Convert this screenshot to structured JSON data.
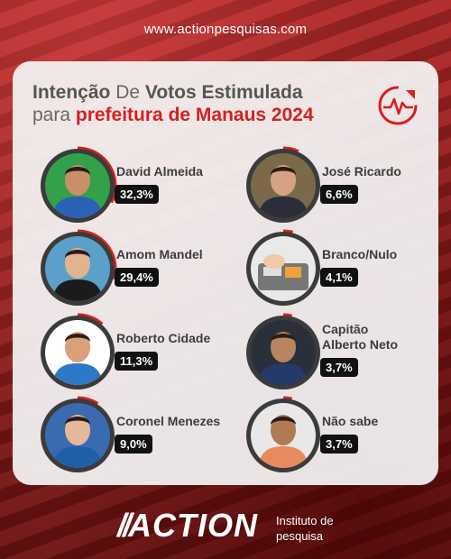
{
  "site": "www.actionpesquisas.com",
  "title": {
    "line1_a": "Intenção",
    "line1_b": " De ",
    "line1_c": "Votos Estimulada",
    "line2_a": "para ",
    "line2_b": "prefeitura de Manaus 2024"
  },
  "brand": {
    "name": "ACTION",
    "sub1": "Instituto de",
    "sub2": "pesquisa"
  },
  "colors": {
    "accent": "#d61f1f",
    "badge": "#111111",
    "ring": "#3b3b3b"
  },
  "chart_data": {
    "type": "table",
    "title": "Intenção De Votos Estimulada para prefeitura de Manaus 2024",
    "categories": [
      "David Almeida",
      "Amom Mandel",
      "Roberto Cidade",
      "Coronel Menezes",
      "José Ricardo",
      "Branco/Nulo",
      "Capitão Alberto Neto",
      "Não sabe"
    ],
    "values": [
      32.3,
      29.4,
      11.3,
      9.0,
      6.6,
      4.1,
      3.7,
      3.7
    ],
    "labels": [
      "32,3%",
      "29,4%",
      "11,3%",
      "9,0%",
      "6,6%",
      "4,1%",
      "3,7%",
      "3,7%"
    ],
    "name_lines": [
      [
        "David Almeida"
      ],
      [
        "Amom Mandel"
      ],
      [
        "Roberto Cidade"
      ],
      [
        "Coronel Menezes"
      ],
      [
        "José Ricardo"
      ],
      [
        "Branco/Nulo"
      ],
      [
        "Capitão",
        "Alberto Neto"
      ],
      [
        "Não sabe"
      ]
    ],
    "icons": [
      "person-photo",
      "person-photo",
      "person-photo",
      "person-photo",
      "person-photo",
      "ballot-box-photo",
      "person-photo",
      "thinking-person-photo"
    ]
  }
}
